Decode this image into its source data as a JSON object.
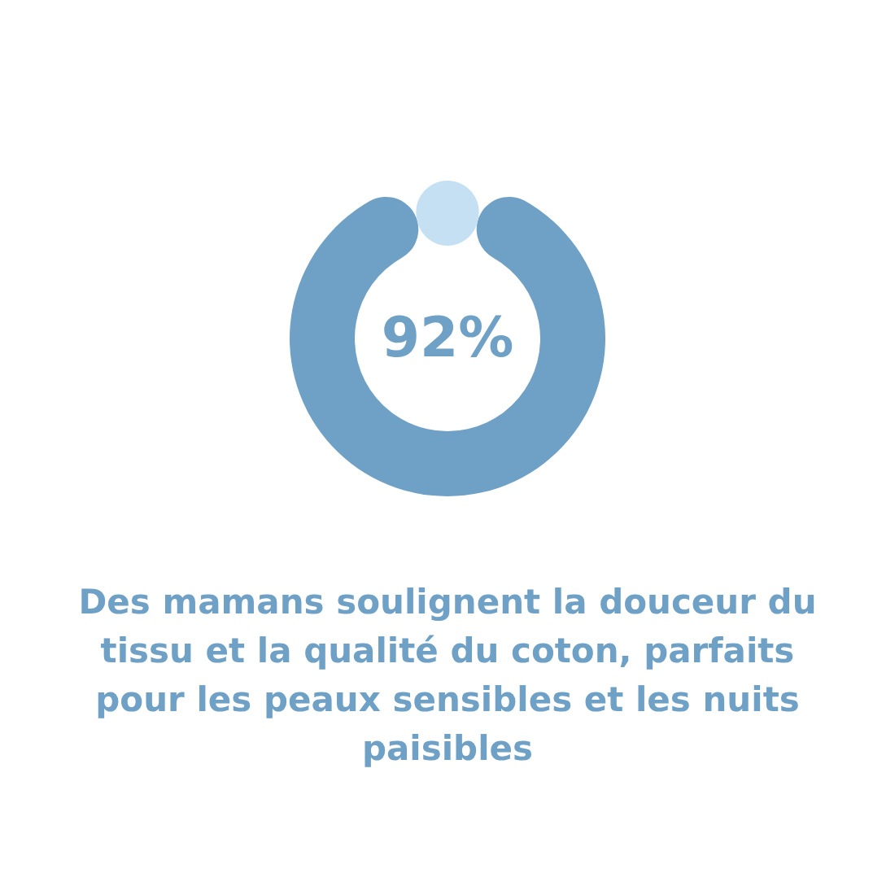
{
  "chart_data": {
    "type": "donut",
    "title": "Des mamans soulignent la douceur du tissu et la qualité du coton, parfaits pour les peaux sensibles et les nuits paisibles",
    "categories": [
      null,
      null
    ],
    "values": [
      92,
      8
    ],
    "colors": [
      "#6fa0c6",
      "#c4e0f2"
    ],
    "value_labels": [
      "92%",
      null
    ],
    "legend": false
  }
}
